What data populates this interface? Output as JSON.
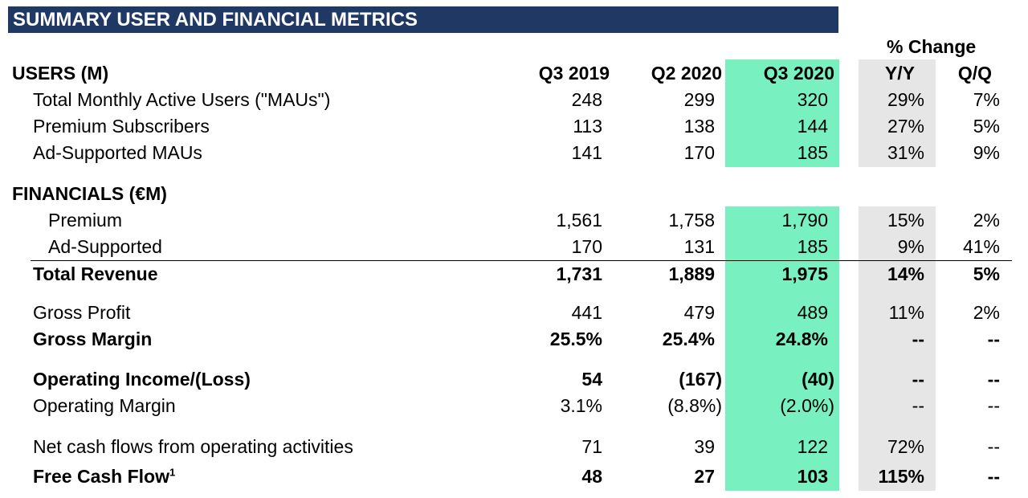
{
  "title": "SUMMARY USER AND FINANCIAL METRICS",
  "pct_change_title": "% Change",
  "users_section": {
    "label": "USERS (M)",
    "col_headers": [
      "Q3 2019",
      "Q2 2020",
      "Q3 2020",
      "Y/Y",
      "Q/Q"
    ],
    "rows": [
      {
        "label": "Total Monthly Active Users (\"MAUs\")",
        "values": [
          "248",
          "299",
          "320",
          "29%",
          "7%"
        ]
      },
      {
        "label": "Premium Subscribers",
        "values": [
          "113",
          "138",
          "144",
          "27%",
          "5%"
        ]
      },
      {
        "label": "Ad-Supported MAUs",
        "values": [
          "141",
          "170",
          "185",
          "31%",
          "9%"
        ]
      }
    ]
  },
  "financials_section": {
    "label": "FINANCIALS (€M)",
    "rows": [
      {
        "label": "Premium",
        "values": [
          "1,561",
          "1,758",
          "1,790",
          "15%",
          "2%"
        ]
      },
      {
        "label": "Ad-Supported",
        "values": [
          "170",
          "131",
          "185",
          "9%",
          "41%"
        ]
      },
      {
        "label": "Total Revenue",
        "values": [
          "1,731",
          "1,889",
          "1,975",
          "14%",
          "5%"
        ]
      },
      {
        "label": "Gross Profit",
        "values": [
          "441",
          "479",
          "489",
          "11%",
          "2%"
        ]
      },
      {
        "label": "Gross Margin",
        "values": [
          "25.5%",
          "25.4%",
          "24.8%",
          "--",
          "--"
        ]
      },
      {
        "label": "Operating Income/(Loss)",
        "values": [
          "54",
          "(167)",
          "(40)",
          "--",
          "--"
        ]
      },
      {
        "label": "Operating Margin",
        "values": [
          "3.1%",
          "(8.8%)",
          "(2.0%)",
          "--",
          "--"
        ]
      },
      {
        "label": "Net cash flows from operating activities",
        "values": [
          "71",
          "39",
          "122",
          "72%",
          "--"
        ]
      },
      {
        "label": "Free Cash Flow",
        "footnote": "1",
        "values": [
          "48",
          "27",
          "103",
          "115%",
          "--"
        ]
      }
    ]
  },
  "colors": {
    "banner": "#1f3864",
    "highlight_current_quarter": "#79f0c0",
    "change_column_shade": "#e6e6e6"
  }
}
